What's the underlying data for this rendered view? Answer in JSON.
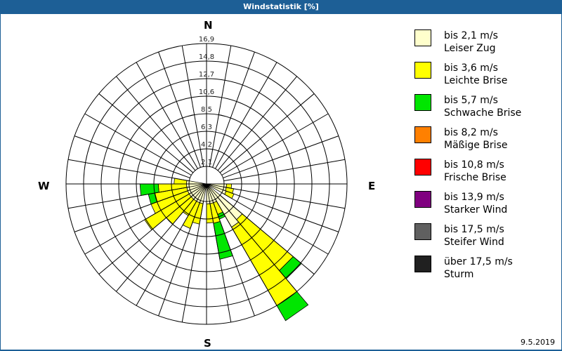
{
  "header": {
    "title": "Windstatistik [%]"
  },
  "compass": {
    "n": "N",
    "e": "E",
    "s": "S",
    "w": "W"
  },
  "footer": {
    "date": "9.5.2019"
  },
  "legend": [
    {
      "line1": "bis 2,1 m/s",
      "line2": "Leiser Zug",
      "color": "#ffffcc"
    },
    {
      "line1": "bis 3,6 m/s",
      "line2": "Leichte Brise",
      "color": "#ffff00"
    },
    {
      "line1": "bis 5,7 m/s",
      "line2": "Schwache Brise",
      "color": "#00e600"
    },
    {
      "line1": "bis 8,2 m/s",
      "line2": "Mäßige Brise",
      "color": "#ff8000"
    },
    {
      "line1": "bis 10,8 m/s",
      "line2": "Frische Brise",
      "color": "#ff0000"
    },
    {
      "line1": "bis 13,9 m/s",
      "line2": "Starker Wind",
      "color": "#800080"
    },
    {
      "line1": "bis 17,5 m/s",
      "line2": "Steifer Wind",
      "color": "#606060"
    },
    {
      "line1": "über 17,5 m/s",
      "line2": "Sturm",
      "color": "#202020"
    }
  ],
  "chart_data": {
    "type": "windrose",
    "title": "Windstatistik [%]",
    "radial_ticks": [
      "2,1",
      "4,2",
      "6,3",
      "8,5",
      "10,6",
      "12,7",
      "14,8",
      "16,9"
    ],
    "radial_max": 16.9,
    "sector_width_deg": 10,
    "series_names": [
      "bis 2,1 m/s",
      "bis 3,6 m/s",
      "bis 5,7 m/s",
      "bis 8,2 m/s",
      "bis 10,8 m/s",
      "bis 13,9 m/s",
      "bis 17,5 m/s",
      "über 17,5 m/s"
    ],
    "sectors": [
      {
        "dir": 95,
        "values": [
          0.3,
          0.6,
          0,
          0,
          0,
          0,
          0,
          0
        ]
      },
      {
        "dir": 105,
        "values": [
          0.3,
          0.9,
          0,
          0,
          0,
          0,
          0,
          0
        ]
      },
      {
        "dir": 115,
        "values": [
          0.4,
          1.0,
          0,
          0,
          0,
          0,
          0,
          0
        ]
      },
      {
        "dir": 135,
        "values": [
          3.5,
          8.0,
          1.3,
          0,
          0,
          0,
          0,
          0
        ]
      },
      {
        "dir": 145,
        "values": [
          3.9,
          10.9,
          2.1,
          0,
          0,
          0,
          0,
          0
        ]
      },
      {
        "dir": 155,
        "values": [
          0.3,
          1.5,
          0.6,
          0,
          0,
          0,
          0,
          0
        ]
      },
      {
        "dir": 165,
        "values": [
          0.3,
          2.4,
          4.4,
          0,
          0,
          0,
          0,
          0
        ]
      },
      {
        "dir": 175,
        "values": [
          0.3,
          2.3,
          0,
          0,
          0,
          0,
          0,
          0
        ]
      },
      {
        "dir": 195,
        "values": [
          0.3,
          2.5,
          0,
          0,
          0,
          0,
          0,
          0
        ]
      },
      {
        "dir": 205,
        "values": [
          0.3,
          3.3,
          0,
          0,
          0,
          0,
          0,
          0
        ]
      },
      {
        "dir": 215,
        "values": [
          0.3,
          2.0,
          0,
          0,
          0,
          0,
          0,
          0
        ]
      },
      {
        "dir": 225,
        "values": [
          0.3,
          3.9,
          0,
          0,
          0,
          0,
          0,
          0
        ]
      },
      {
        "dir": 235,
        "values": [
          0.3,
          6.2,
          0,
          0,
          0,
          0,
          0,
          0
        ]
      },
      {
        "dir": 245,
        "values": [
          0.3,
          4.7,
          0,
          0,
          0,
          0,
          0,
          0
        ]
      },
      {
        "dir": 255,
        "values": [
          0.3,
          3.9,
          0.8,
          0,
          0,
          0,
          0,
          0
        ]
      },
      {
        "dir": 265,
        "values": [
          0.3,
          3.4,
          2.2,
          0,
          0,
          0,
          0,
          0
        ]
      },
      {
        "dir": 275,
        "values": [
          0.3,
          1.5,
          0,
          0,
          0,
          0,
          0,
          0
        ]
      }
    ]
  }
}
